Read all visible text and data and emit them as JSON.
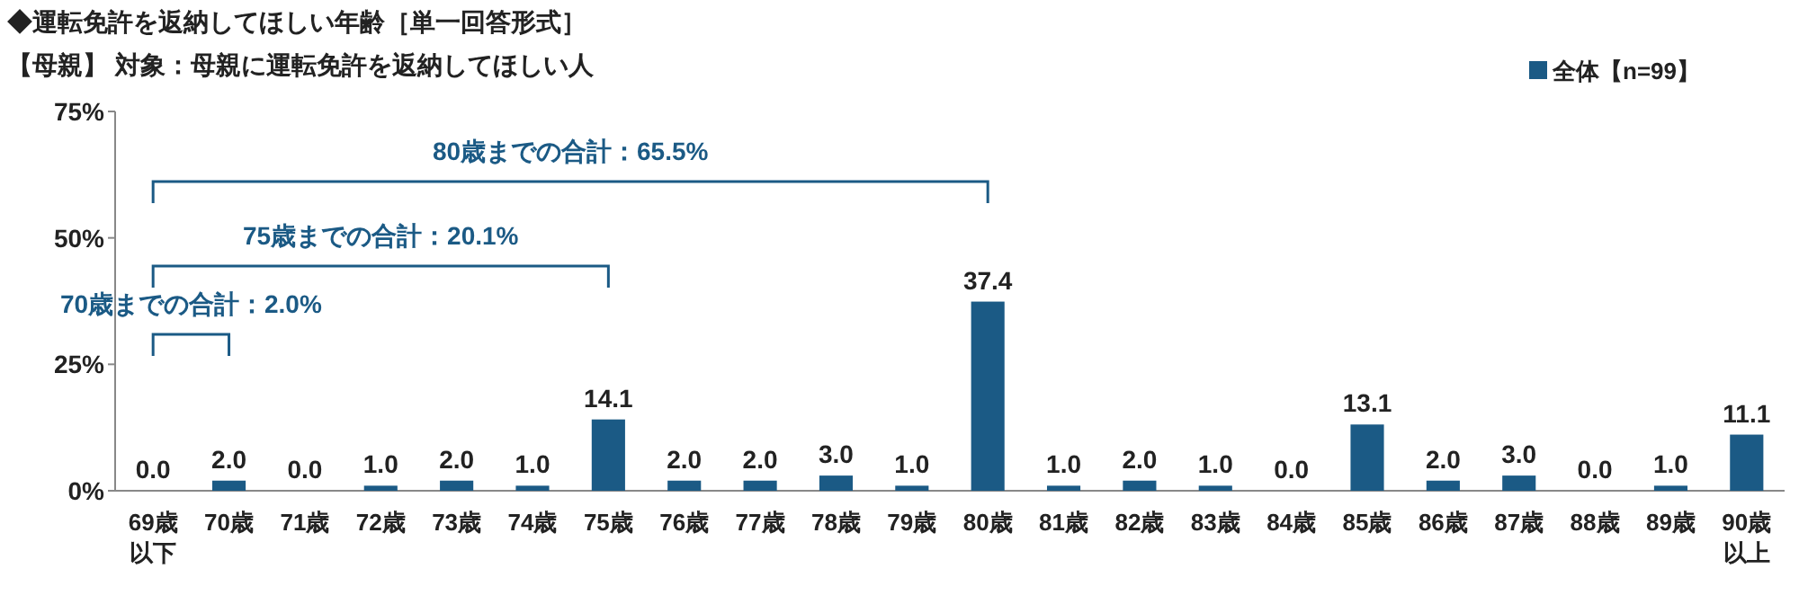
{
  "chart_data": {
    "type": "bar",
    "title": "◆運転免許を返納してほしい年齢［単一回答形式］",
    "subtitle": "【母親】 対象：母親に運転免許を返納してほしい人",
    "categories": [
      "69歳以下",
      "70歳",
      "71歳",
      "72歳",
      "73歳",
      "74歳",
      "75歳",
      "76歳",
      "77歳",
      "78歳",
      "79歳",
      "80歳",
      "81歳",
      "82歳",
      "83歳",
      "84歳",
      "85歳",
      "86歳",
      "87歳",
      "88歳",
      "89歳",
      "90歳以上"
    ],
    "series": [
      {
        "name": "全体【n=99】",
        "color": "#1b5a85",
        "values": [
          0.0,
          2.0,
          0.0,
          1.0,
          2.0,
          1.0,
          14.1,
          2.0,
          2.0,
          3.0,
          1.0,
          37.4,
          1.0,
          2.0,
          1.0,
          0.0,
          13.1,
          2.0,
          3.0,
          0.0,
          1.0,
          11.1
        ],
        "value_labels": [
          "0.0",
          "2.0",
          "0.0",
          "1.0",
          "2.0",
          "1.0",
          "14.1",
          "2.0",
          "2.0",
          "3.0",
          "1.0",
          "37.4",
          "1.0",
          "2.0",
          "1.0",
          "0.0",
          "13.1",
          "2.0",
          "3.0",
          "0.0",
          "1.0",
          "11.1"
        ]
      }
    ],
    "ylim": [
      0,
      75
    ],
    "yticks": [
      {
        "value": 0,
        "label": "0%"
      },
      {
        "value": 25,
        "label": "25%"
      },
      {
        "value": 50,
        "label": "50%"
      },
      {
        "value": 75,
        "label": "75%"
      }
    ],
    "legend": "top right",
    "grid": false,
    "annotations": [
      "70歳までの合計：2.0%",
      "75歳までの合計：20.1%",
      "80歳までの合計：65.5%"
    ]
  }
}
